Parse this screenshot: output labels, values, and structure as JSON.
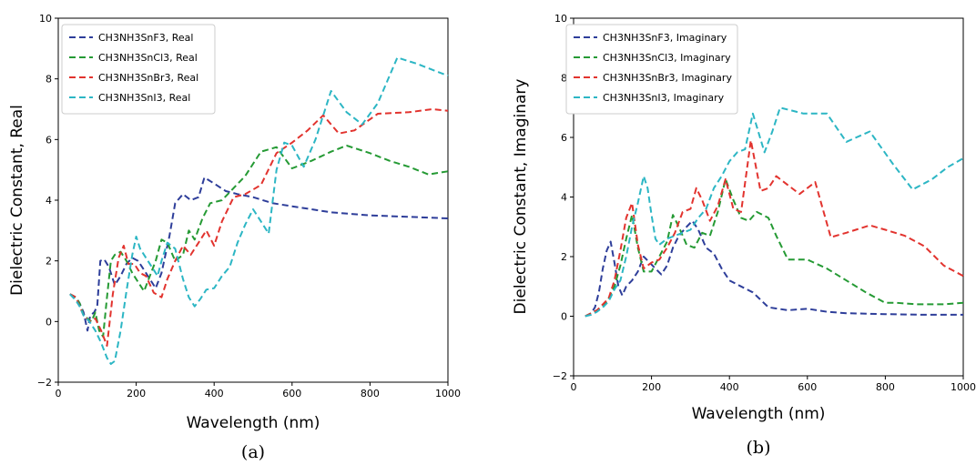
{
  "chart_data": [
    {
      "type": "line",
      "caption": "(a)",
      "xlabel": "Wavelength (nm)",
      "ylabel": "Dielectric Constant, Real",
      "xlim": [
        0,
        1000
      ],
      "ylim": [
        -2,
        10
      ],
      "xticks": [
        0,
        200,
        400,
        600,
        800,
        1000
      ],
      "yticks": [
        -2,
        0,
        2,
        4,
        6,
        8,
        10
      ],
      "grid": false,
      "legend_position": "top-left",
      "line_style": "dashed",
      "series": [
        {
          "name": "CH3NH3SnF3, Real",
          "color": "#2e3e9a",
          "x": [
            30,
            45,
            55,
            65,
            75,
            82,
            92,
            100,
            108,
            118,
            130,
            145,
            160,
            175,
            190,
            205,
            220,
            235,
            250,
            265,
            285,
            300,
            320,
            340,
            360,
            375,
            400,
            430,
            460,
            500,
            550,
            600,
            700,
            800,
            900,
            1000
          ],
          "y": [
            0.9,
            0.8,
            0.6,
            0.3,
            -0.3,
            0.2,
            0.3,
            0.5,
            2.0,
            2.05,
            1.8,
            1.2,
            1.5,
            1.9,
            2.1,
            2.0,
            1.7,
            1.4,
            1.1,
            1.6,
            2.8,
            3.9,
            4.2,
            4.0,
            4.1,
            4.75,
            4.55,
            4.3,
            4.2,
            4.1,
            3.9,
            3.8,
            3.6,
            3.5,
            3.45,
            3.4
          ]
        },
        {
          "name": "CH3NH3SnCl3, Real",
          "color": "#259a34",
          "x": [
            30,
            45,
            55,
            65,
            75,
            85,
            95,
            105,
            115,
            125,
            135,
            145,
            160,
            175,
            190,
            205,
            220,
            235,
            250,
            265,
            280,
            300,
            320,
            335,
            350,
            370,
            390,
            420,
            450,
            480,
            520,
            560,
            600,
            650,
            700,
            740,
            800,
            850,
            900,
            950,
            1000
          ],
          "y": [
            0.9,
            0.8,
            0.6,
            0.2,
            0.1,
            0.0,
            0.3,
            -0.3,
            -0.5,
            0.8,
            2.0,
            2.2,
            2.3,
            2.0,
            1.6,
            1.3,
            1.0,
            1.5,
            2.0,
            2.7,
            2.6,
            2.0,
            2.2,
            3.0,
            2.7,
            3.4,
            3.9,
            4.0,
            4.4,
            4.8,
            5.6,
            5.75,
            5.05,
            5.3,
            5.6,
            5.8,
            5.55,
            5.3,
            5.1,
            4.85,
            4.95
          ]
        },
        {
          "name": "CH3NH3SnBr3, Real",
          "color": "#e2332e",
          "x": [
            30,
            45,
            55,
            65,
            80,
            95,
            110,
            125,
            140,
            155,
            168,
            180,
            195,
            210,
            225,
            245,
            265,
            280,
            300,
            320,
            340,
            360,
            380,
            400,
            420,
            450,
            480,
            520,
            560,
            600,
            640,
            680,
            720,
            760,
            820,
            900,
            960,
            1000
          ],
          "y": [
            0.9,
            0.8,
            0.5,
            0.2,
            0.0,
            0.1,
            -0.3,
            -0.8,
            0.9,
            2.1,
            2.5,
            1.9,
            1.9,
            1.6,
            1.5,
            0.95,
            0.8,
            1.4,
            2.0,
            2.5,
            2.2,
            2.6,
            3.0,
            2.5,
            3.3,
            4.1,
            4.2,
            4.5,
            5.55,
            5.9,
            6.3,
            6.8,
            6.2,
            6.3,
            6.85,
            6.9,
            7.0,
            6.95
          ]
        },
        {
          "name": "CH3NH3SnI3, Real",
          "color": "#2cb6c4",
          "x": [
            30,
            45,
            55,
            65,
            80,
            95,
            110,
            125,
            135,
            145,
            160,
            175,
            190,
            200,
            210,
            225,
            240,
            255,
            265,
            280,
            300,
            320,
            335,
            350,
            365,
            380,
            400,
            420,
            440,
            460,
            480,
            500,
            520,
            540,
            560,
            580,
            600,
            630,
            660,
            700,
            740,
            780,
            820,
            870,
            920,
            960,
            1000
          ],
          "y": [
            0.9,
            0.7,
            0.5,
            0.2,
            0.0,
            -0.3,
            -0.7,
            -1.2,
            -1.4,
            -1.3,
            -0.3,
            1.0,
            2.2,
            2.8,
            2.4,
            2.1,
            1.8,
            1.5,
            2.0,
            2.6,
            2.4,
            1.4,
            0.8,
            0.5,
            0.75,
            1.05,
            1.1,
            1.5,
            1.8,
            2.6,
            3.2,
            3.7,
            3.3,
            2.9,
            5.0,
            5.9,
            5.8,
            5.1,
            6.0,
            7.6,
            6.9,
            6.5,
            7.2,
            8.7,
            8.5,
            8.3,
            8.1
          ]
        }
      ]
    },
    {
      "type": "line",
      "caption": "(b)",
      "xlabel": "Wavelength (nm)",
      "ylabel": "Dielectric Constant, Imaginary",
      "xlim": [
        0,
        1000
      ],
      "ylim": [
        -2,
        10
      ],
      "xticks": [
        0,
        200,
        400,
        600,
        800,
        1000
      ],
      "yticks": [
        -2,
        0,
        2,
        4,
        6,
        8,
        10
      ],
      "grid": false,
      "legend_position": "top-left",
      "line_style": "dashed",
      "series": [
        {
          "name": "CH3NH3SnF3, Imaginary",
          "color": "#2e3e9a",
          "x": [
            30,
            45,
            55,
            65,
            75,
            85,
            95,
            105,
            115,
            125,
            135,
            150,
            165,
            180,
            195,
            210,
            225,
            240,
            255,
            270,
            290,
            305,
            320,
            340,
            360,
            380,
            400,
            430,
            460,
            500,
            550,
            600,
            650,
            700,
            800,
            900,
            1000
          ],
          "y": [
            0.0,
            0.1,
            0.3,
            0.8,
            1.6,
            2.2,
            2.5,
            1.8,
            1.0,
            0.7,
            1.0,
            1.2,
            1.5,
            2.0,
            1.8,
            1.6,
            1.4,
            1.7,
            2.3,
            2.7,
            3.0,
            3.2,
            2.9,
            2.3,
            2.1,
            1.6,
            1.2,
            1.0,
            0.8,
            0.3,
            0.2,
            0.25,
            0.15,
            0.1,
            0.07,
            0.05,
            0.05
          ]
        },
        {
          "name": "CH3NH3SnCl3, Imaginary",
          "color": "#259a34",
          "x": [
            30,
            45,
            60,
            75,
            90,
            105,
            120,
            135,
            150,
            165,
            180,
            200,
            220,
            240,
            255,
            270,
            290,
            310,
            330,
            350,
            370,
            390,
            410,
            430,
            450,
            470,
            500,
            520,
            550,
            600,
            650,
            700,
            750,
            800,
            830,
            880,
            950,
            1000
          ],
          "y": [
            0.0,
            0.1,
            0.2,
            0.3,
            0.6,
            1.0,
            1.7,
            2.6,
            3.4,
            2.3,
            1.5,
            1.5,
            2.0,
            2.5,
            3.4,
            3.0,
            2.4,
            2.3,
            2.8,
            2.7,
            3.5,
            4.6,
            3.9,
            3.3,
            3.2,
            3.5,
            3.3,
            2.7,
            1.9,
            1.9,
            1.6,
            1.2,
            0.8,
            0.45,
            0.45,
            0.4,
            0.4,
            0.45
          ]
        },
        {
          "name": "CH3NH3SnBr3, Imaginary",
          "color": "#e2332e",
          "x": [
            30,
            45,
            60,
            75,
            90,
            105,
            120,
            135,
            150,
            165,
            180,
            200,
            220,
            240,
            260,
            280,
            300,
            315,
            330,
            350,
            370,
            390,
            410,
            430,
            455,
            480,
            500,
            520,
            550,
            580,
            620,
            660,
            700,
            760,
            800,
            850,
            900,
            950,
            1000
          ],
          "y": [
            0.0,
            0.1,
            0.2,
            0.4,
            0.6,
            1.2,
            2.2,
            3.3,
            3.8,
            2.4,
            1.6,
            1.8,
            1.9,
            2.3,
            2.8,
            3.5,
            3.6,
            4.3,
            3.9,
            3.2,
            3.7,
            4.6,
            3.6,
            3.5,
            5.9,
            4.2,
            4.3,
            4.7,
            4.4,
            4.1,
            4.5,
            2.65,
            2.8,
            3.05,
            2.9,
            2.7,
            2.35,
            1.7,
            1.35
          ]
        },
        {
          "name": "CH3NH3SnI3, Imaginary",
          "color": "#2cb6c4",
          "x": [
            30,
            45,
            60,
            75,
            90,
            105,
            120,
            135,
            150,
            165,
            180,
            190,
            200,
            210,
            220,
            240,
            260,
            280,
            300,
            320,
            340,
            360,
            380,
            400,
            420,
            440,
            460,
            490,
            510,
            530,
            560,
            590,
            620,
            650,
            700,
            760,
            820,
            870,
            920,
            960,
            1000
          ],
          "y": [
            0.0,
            0.05,
            0.15,
            0.3,
            0.5,
            0.9,
            1.2,
            2.0,
            3.0,
            3.8,
            4.7,
            4.3,
            3.4,
            2.6,
            2.4,
            2.6,
            2.7,
            2.8,
            2.9,
            3.3,
            3.6,
            4.3,
            4.7,
            5.2,
            5.5,
            5.6,
            6.8,
            5.5,
            6.2,
            7.0,
            6.9,
            6.8,
            6.8,
            6.8,
            5.85,
            6.2,
            5.1,
            4.25,
            4.6,
            5.0,
            5.3
          ]
        }
      ]
    }
  ]
}
